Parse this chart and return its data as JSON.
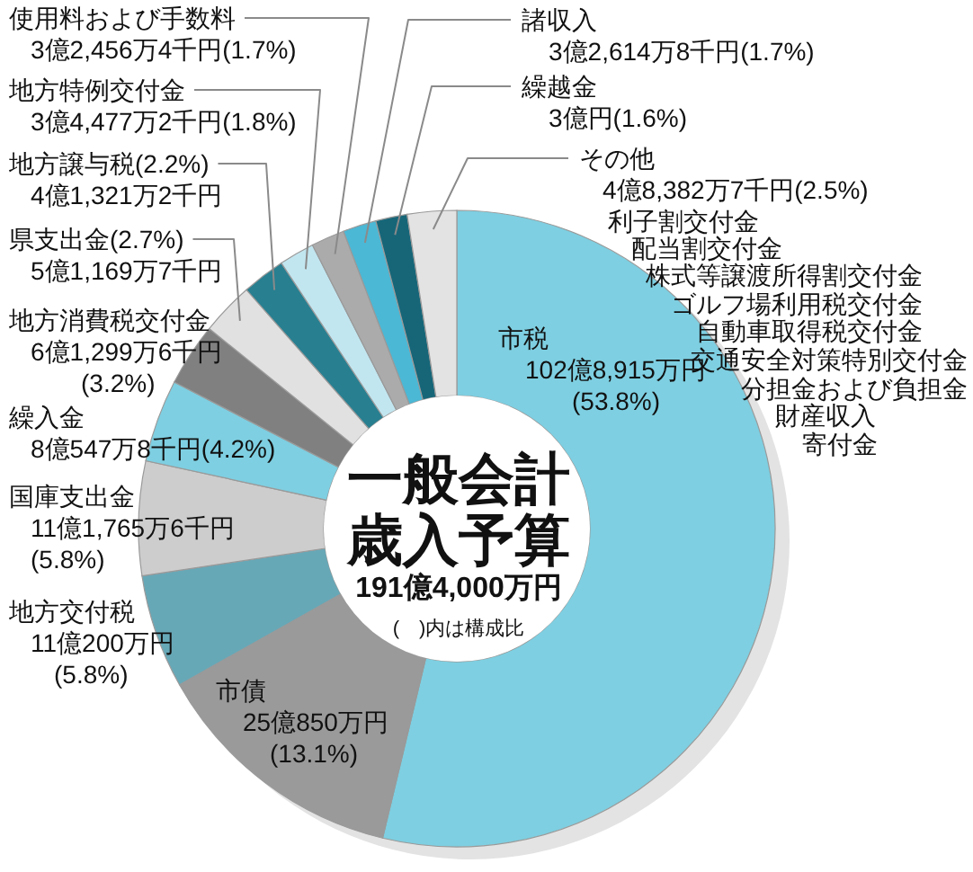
{
  "chart_data": {
    "type": "donut",
    "title": "一般会計歳入予算",
    "subtitle": "191億4,000万円",
    "categories": [
      "市税",
      "市債",
      "地方交付税",
      "国庫支出金",
      "繰入金",
      "地方消費税交付金",
      "県支出金",
      "地方譲与税",
      "地方特例交付金",
      "使用料および手数料",
      "諸収入",
      "繰越金",
      "その他"
    ],
    "values": [
      53.8,
      13.1,
      5.8,
      5.8,
      4.2,
      3.2,
      2.7,
      2.2,
      1.8,
      1.7,
      1.7,
      1.6,
      2.5
    ],
    "colors": [
      "#7ecfe1",
      "#9a9a9a",
      "#67a8b7",
      "#cdcdcd",
      "#7ecfe1",
      "#808080",
      "#e1e1e1",
      "#277f90",
      "#c2e6f0",
      "#ababab",
      "#4bb8d5",
      "#166678",
      "#e3e3e3"
    ],
    "value_labels": [
      "102億8,915万円\n(53.8%)",
      "25億850万円\n(13.1%)",
      "11億200万円\n(5.8%)",
      "11億1,765万6千円\n(5.8%)",
      "8億547万8千円(4.2%)",
      "6億1,299万6千円\n(3.2%)",
      "(2.7%)\n5億1,169万7千円",
      "(2.2%)\n4億1,321万2千円",
      "3億4,477万2千円(1.8%)",
      "3億2,456万4千円(1.7%)",
      "3億2,614万8千円(1.7%)",
      "3億円(1.6%)",
      "4億8,382万7千円(2.5%)"
    ],
    "annotations": [
      "利子割交付金",
      "配当割交付金",
      "株式等譲渡所得割交付金",
      "ゴルフ場利用税交付金",
      "自動車取得税交付金",
      "交通安全対策特別交付金",
      "分担金および負担金",
      "財産収入",
      "寄付金",
      "(　)内は構成比"
    ]
  }
}
